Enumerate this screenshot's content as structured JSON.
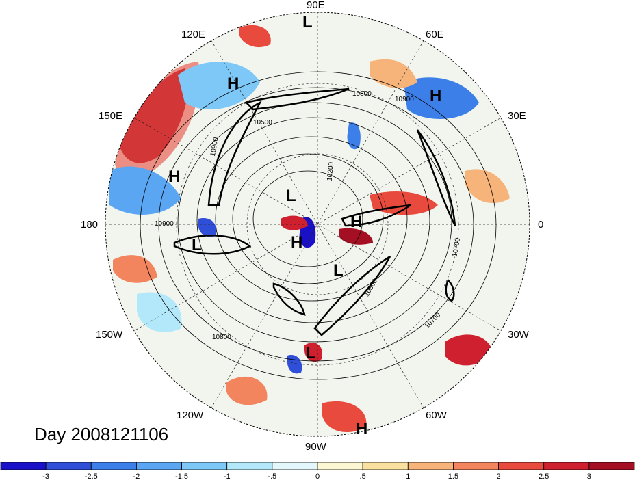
{
  "title": "Day 2008121106",
  "longitude_labels": [
    "90E",
    "60E",
    "30E",
    "0",
    "30W",
    "60W",
    "90W",
    "120W",
    "150W",
    "180",
    "150E",
    "120E"
  ],
  "pressure_centers": [
    {
      "label": "L",
      "id": "l-90e"
    },
    {
      "label": "H",
      "id": "h-120e"
    },
    {
      "label": "H",
      "id": "h-45e"
    },
    {
      "label": "H",
      "id": "h-165e"
    },
    {
      "label": "L",
      "id": "l-pole"
    },
    {
      "label": "H",
      "id": "h-pole"
    },
    {
      "label": "H",
      "id": "h-east"
    },
    {
      "label": "L",
      "id": "l-180"
    },
    {
      "label": "L",
      "id": "l-canada"
    },
    {
      "label": "L",
      "id": "l-gulf"
    },
    {
      "label": "H",
      "id": "h-south"
    }
  ],
  "contour_labels": [
    "10800",
    "10900",
    "10900",
    "10200",
    "10500",
    "10900",
    "10700",
    "10800",
    "10700",
    "10800"
  ],
  "colorbar": {
    "ticks": [
      "-3",
      "-2.5",
      "-2",
      "-1.5",
      "-1",
      "-.5",
      "0",
      ".5",
      "1",
      "1.5",
      "2",
      "2.5",
      "3"
    ],
    "colors": [
      "#1a10c8",
      "#2f4fd8",
      "#3d7fe8",
      "#5aa6f2",
      "#7ec8f7",
      "#b3e8fb",
      "#e2f6fb",
      "#fdf6d2",
      "#fbe1a0",
      "#f7b47a",
      "#f2845e",
      "#e84b3d",
      "#cf2030",
      "#a50f24"
    ]
  }
}
